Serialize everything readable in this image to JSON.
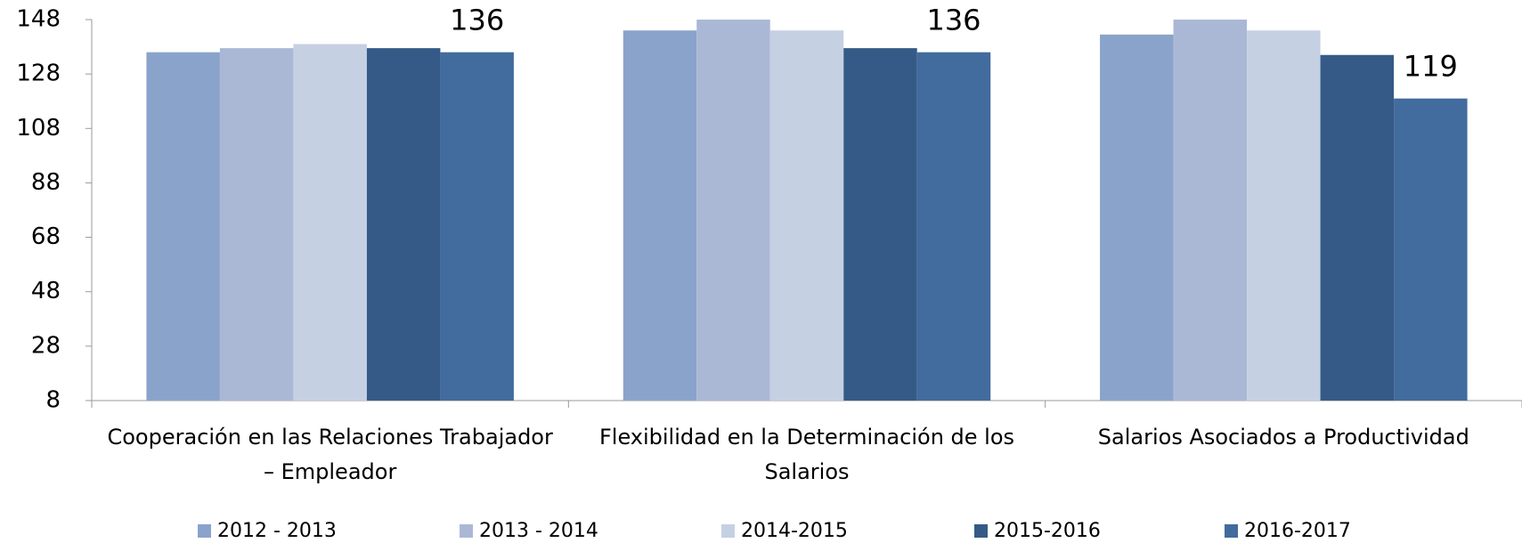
{
  "chart_data": {
    "type": "bar",
    "categories": [
      "Cooperación en las Relaciones Trabajador – Empleador",
      "Flexibilidad en la Determinación de los Salarios",
      "Salarios Asociados a Productividad"
    ],
    "series": [
      {
        "name": "2012 - 2013",
        "color": "#8aa3cb",
        "values": [
          136,
          144,
          142.5
        ]
      },
      {
        "name": "2013 - 2014",
        "color": "#aab8d6",
        "values": [
          137.5,
          148,
          148
        ]
      },
      {
        "name": "2014-2015",
        "color": "#c6d0e3",
        "values": [
          139,
          144,
          144
        ]
      },
      {
        "name": "2015-2016",
        "color": "#355a87",
        "values": [
          137.5,
          137.5,
          135
        ]
      },
      {
        "name": "2016-2017",
        "color": "#426b9e",
        "values": [
          136,
          136,
          119
        ],
        "data_labels": true
      }
    ],
    "ylim": [
      8,
      148
    ],
    "yticks": [
      8,
      28,
      48,
      68,
      88,
      108,
      128,
      148
    ],
    "grid": false,
    "legend": "bottom"
  }
}
